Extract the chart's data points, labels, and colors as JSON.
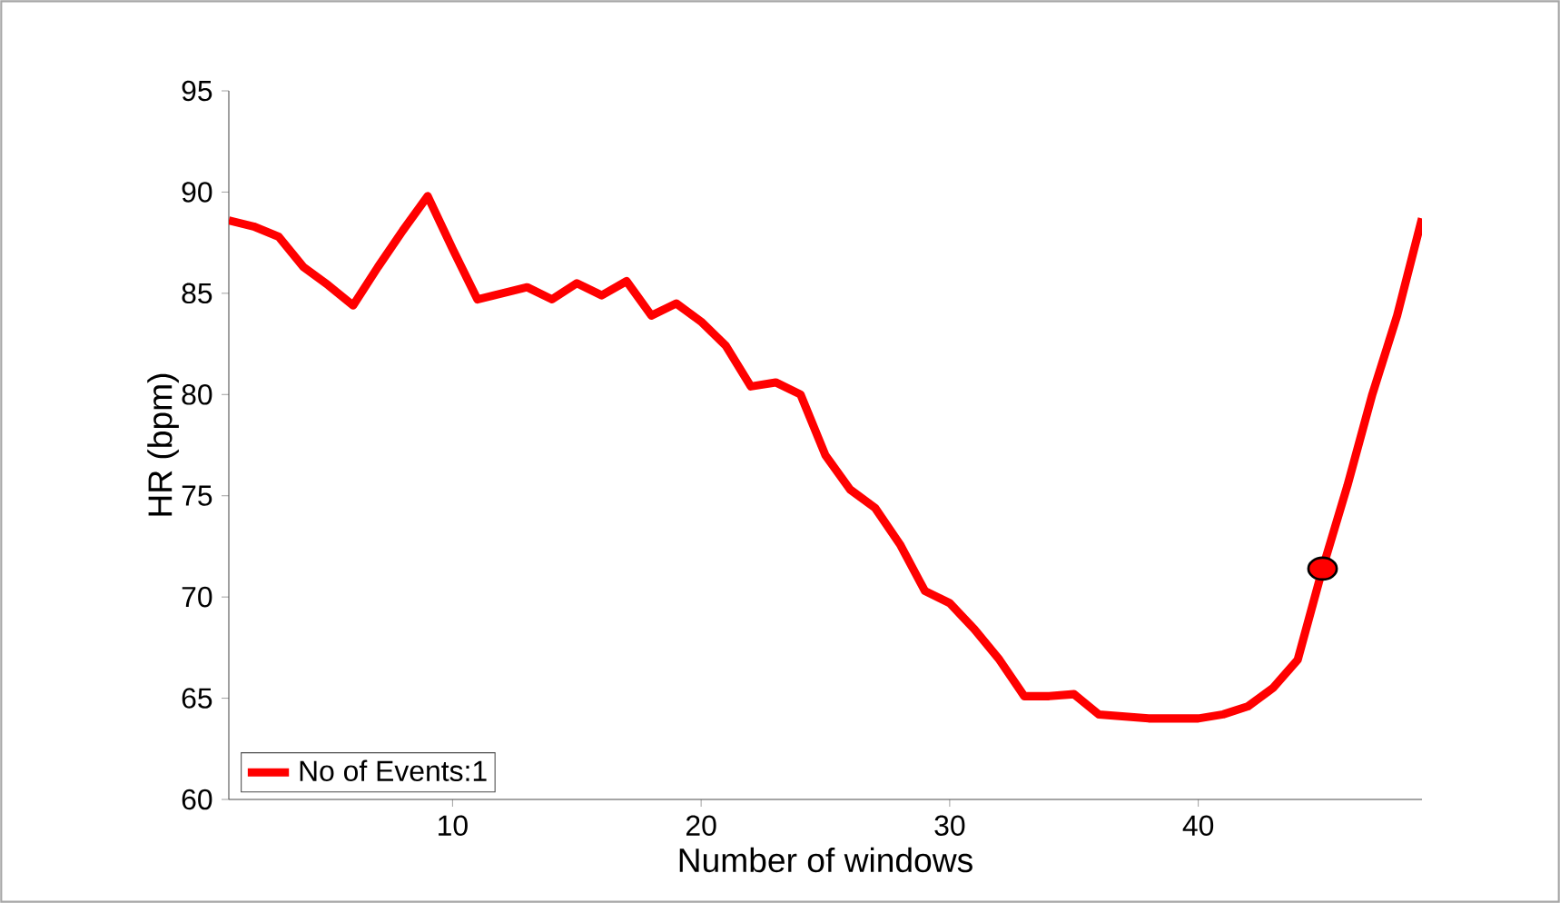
{
  "chart_data": {
    "type": "line",
    "xlabel": "Number of windows",
    "ylabel": "HR (bpm)",
    "xlim": [
      1,
      49
    ],
    "ylim": [
      60,
      95
    ],
    "xticks": [
      10,
      20,
      30,
      40
    ],
    "yticks": [
      60,
      65,
      70,
      75,
      80,
      85,
      90,
      95
    ],
    "legend": "bottom left",
    "grid": false,
    "line_style": "solid",
    "series": [
      {
        "name": "No of Events:1",
        "color": "#ff0000",
        "x": [
          1,
          2,
          3,
          4,
          5,
          6,
          7,
          8,
          9,
          10,
          11,
          12,
          13,
          14,
          15,
          16,
          17,
          18,
          19,
          20,
          21,
          22,
          23,
          24,
          25,
          26,
          27,
          28,
          29,
          30,
          31,
          32,
          33,
          34,
          35,
          36,
          37,
          38,
          39,
          40,
          41,
          42,
          43,
          44,
          45,
          46,
          47,
          48,
          49
        ],
        "values": [
          88.6,
          88.3,
          87.8,
          86.3,
          85.4,
          84.4,
          86.3,
          88.1,
          89.8,
          87.2,
          84.7,
          85.0,
          85.3,
          84.7,
          85.5,
          84.9,
          85.6,
          83.9,
          84.5,
          83.6,
          82.4,
          80.4,
          80.6,
          80.0,
          77.0,
          75.3,
          74.4,
          72.6,
          70.3,
          69.7,
          68.4,
          66.9,
          65.1,
          65.1,
          65.2,
          64.2,
          64.1,
          64.0,
          64.0,
          64.0,
          64.2,
          64.6,
          65.5,
          66.9,
          71.4,
          75.5,
          80.0,
          83.9,
          88.7
        ]
      },
      {
        "type": "scatter",
        "marker": "circle",
        "color": "#ff0000",
        "x": [
          45
        ],
        "values": [
          71.4
        ]
      }
    ]
  }
}
